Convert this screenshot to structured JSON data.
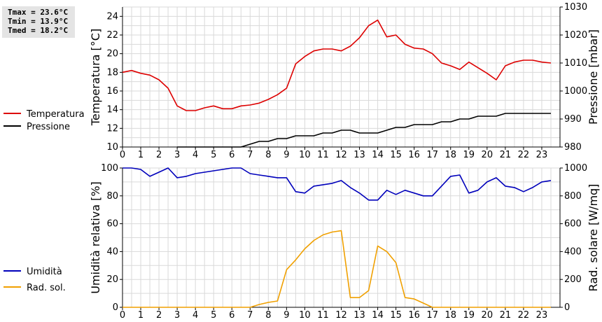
{
  "stats": {
    "tmax": "Tmax = 23.6°C",
    "tmin": "Tmin = 13.9°C",
    "tmed": "Tmed = 18.2°C"
  },
  "chart_data": [
    {
      "type": "line",
      "title": "",
      "xlabel": "",
      "ylabel": "Temperatura [°C]",
      "y2label": "Pressione [mbar]",
      "xlim": [
        0,
        24
      ],
      "ylim": [
        10,
        25
      ],
      "y2lim": [
        980,
        1030
      ],
      "x_ticks": [
        0,
        1,
        2,
        3,
        4,
        5,
        6,
        7,
        8,
        9,
        10,
        11,
        12,
        13,
        14,
        15,
        16,
        17,
        18,
        19,
        20,
        21,
        22,
        23
      ],
      "y_ticks": [
        10,
        12,
        14,
        16,
        18,
        20,
        22,
        24
      ],
      "y2_ticks": [
        980,
        990,
        1000,
        1010,
        1020,
        1030
      ],
      "grid": true,
      "legend_position": "left",
      "series": [
        {
          "name": "Temperatura",
          "axis": "left",
          "color": "#dd0000",
          "x": [
            0,
            0.5,
            1,
            1.5,
            2,
            2.5,
            3,
            3.5,
            4,
            4.5,
            5,
            5.5,
            6,
            6.5,
            7,
            7.5,
            8,
            8.5,
            9,
            9.5,
            10,
            10.5,
            11,
            11.5,
            12,
            12.5,
            13,
            13.5,
            14,
            14.5,
            15,
            15.5,
            16,
            16.5,
            17,
            17.5,
            18,
            18.5,
            19,
            19.5,
            20,
            20.5,
            21,
            21.5,
            22,
            22.5,
            23,
            23.5
          ],
          "values": [
            18.0,
            18.2,
            17.9,
            17.7,
            17.2,
            16.3,
            14.4,
            13.9,
            13.9,
            14.2,
            14.4,
            14.1,
            14.1,
            14.4,
            14.5,
            14.7,
            15.1,
            15.6,
            16.3,
            18.9,
            19.7,
            20.3,
            20.5,
            20.5,
            20.3,
            20.8,
            21.7,
            23.0,
            23.6,
            21.8,
            22.0,
            21.0,
            20.6,
            20.5,
            20.0,
            19.0,
            18.7,
            18.3,
            19.1,
            18.5,
            17.9,
            17.2,
            18.7,
            19.1,
            19.3,
            19.3,
            19.1,
            19.0
          ]
        },
        {
          "name": "Pressione",
          "axis": "right",
          "color": "#000000",
          "x": [
            3,
            3.5,
            4,
            4.5,
            5,
            5.5,
            6,
            6.5,
            7,
            7.5,
            8,
            8.5,
            9,
            9.5,
            10,
            10.5,
            11,
            11.5,
            12,
            12.5,
            13,
            13.5,
            14,
            14.5,
            15,
            15.5,
            16,
            16.5,
            17,
            17.5,
            18,
            18.5,
            19,
            19.5,
            20,
            20.5,
            21,
            21.5,
            22,
            22.5,
            23,
            23.5
          ],
          "values": [
            980,
            980,
            980,
            980,
            980,
            980,
            980,
            980,
            981,
            982,
            982,
            983,
            983,
            984,
            984,
            984,
            985,
            985,
            986,
            986,
            985,
            985,
            985,
            986,
            987,
            987,
            988,
            988,
            988,
            989,
            989,
            990,
            990,
            991,
            991,
            991,
            992,
            992,
            992,
            992,
            992,
            992
          ]
        }
      ]
    },
    {
      "type": "line",
      "title": "",
      "xlabel": "",
      "ylabel": "Umidità relativa [%]",
      "y2label": "Rad. solare [W/mq]",
      "xlim": [
        0,
        24
      ],
      "ylim": [
        0,
        100
      ],
      "y2lim": [
        0,
        1000
      ],
      "x_ticks": [
        0,
        1,
        2,
        3,
        4,
        5,
        6,
        7,
        8,
        9,
        10,
        11,
        12,
        13,
        14,
        15,
        16,
        17,
        18,
        19,
        20,
        21,
        22,
        23
      ],
      "y_ticks": [
        0,
        20,
        40,
        60,
        80,
        100
      ],
      "y2_ticks": [
        0,
        200,
        400,
        600,
        800,
        1000
      ],
      "grid": true,
      "legend_position": "left",
      "series": [
        {
          "name": "Umidità",
          "axis": "left",
          "color": "#0000bb",
          "x": [
            0,
            0.5,
            1,
            1.5,
            2,
            2.5,
            3,
            3.5,
            4,
            4.5,
            5,
            5.5,
            6,
            6.5,
            7,
            7.5,
            8,
            8.5,
            9,
            9.5,
            10,
            10.5,
            11,
            11.5,
            12,
            12.5,
            13,
            13.5,
            14,
            14.5,
            15,
            15.5,
            16,
            16.5,
            17,
            17.5,
            18,
            18.5,
            19,
            19.5,
            20,
            20.5,
            21,
            21.5,
            22,
            22.5,
            23,
            23.5
          ],
          "values": [
            100,
            100,
            99,
            94,
            97,
            100,
            93,
            94,
            96,
            97,
            98,
            99,
            100,
            100,
            96,
            95,
            94,
            93,
            93,
            83,
            82,
            87,
            88,
            89,
            91,
            86,
            82,
            77,
            77,
            84,
            81,
            84,
            82,
            80,
            80,
            87,
            94,
            95,
            82,
            84,
            90,
            93,
            87,
            86,
            83,
            86,
            90,
            91
          ]
        },
        {
          "name": "Rad. sol.",
          "axis": "right",
          "color": "#f0a000",
          "x": [
            0,
            0.5,
            1,
            1.5,
            2,
            2.5,
            3,
            3.5,
            4,
            4.5,
            5,
            5.5,
            6,
            6.5,
            7,
            7.5,
            8,
            8.5,
            9,
            9.5,
            10,
            10.5,
            11,
            11.5,
            12,
            12.5,
            13,
            13.5,
            14,
            14.5,
            15,
            15.5,
            16,
            16.5,
            17,
            17.5,
            18,
            18.5,
            19,
            19.5,
            20,
            20.5,
            21,
            21.5,
            22,
            22.5,
            23,
            23.5
          ],
          "values": [
            0,
            0,
            0,
            0,
            0,
            0,
            0,
            0,
            0,
            0,
            0,
            0,
            0,
            0,
            0,
            20,
            35,
            45,
            270,
            340,
            420,
            480,
            520,
            540,
            550,
            70,
            70,
            120,
            440,
            400,
            320,
            70,
            60,
            30,
            0,
            0,
            0,
            0,
            0,
            0,
            0,
            0,
            0,
            0,
            0,
            0,
            0,
            0
          ]
        }
      ]
    }
  ]
}
